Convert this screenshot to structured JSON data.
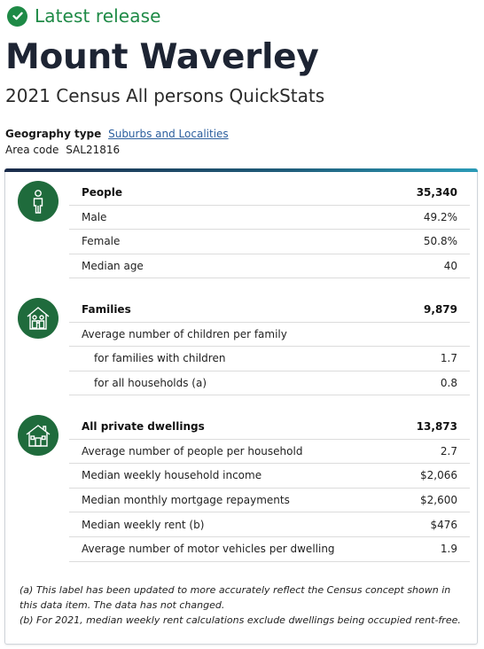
{
  "release": {
    "label": "Latest release",
    "icon": "check-circle-icon",
    "color": "#1e8a46"
  },
  "page": {
    "title": "Mount Waverley",
    "subtitle": "2021 Census All persons QuickStats"
  },
  "geography": {
    "type_label": "Geography type",
    "type_value": "Suburbs and Localities",
    "code_label": "Area code",
    "code_value": "SAL21816"
  },
  "sections": {
    "people": {
      "icon": "person-icon",
      "rows": [
        {
          "label": "People",
          "value": "35,340"
        },
        {
          "label": "Male",
          "value": "49.2%"
        },
        {
          "label": "Female",
          "value": "50.8%"
        },
        {
          "label": "Median age",
          "value": "40"
        }
      ]
    },
    "families": {
      "icon": "family-house-icon",
      "rows": [
        {
          "label": "Families",
          "value": "9,879"
        },
        {
          "label": "Average number of children per family",
          "value": ""
        },
        {
          "label": "for families with children",
          "value": "1.7"
        },
        {
          "label": "for all households (a)",
          "value": "0.8"
        }
      ]
    },
    "dwellings": {
      "icon": "house-icon",
      "rows": [
        {
          "label": "All private dwellings",
          "value": "13,873"
        },
        {
          "label": "Average number of people per household",
          "value": "2.7"
        },
        {
          "label": "Median weekly household income",
          "value": "$2,066"
        },
        {
          "label": "Median monthly mortgage repayments",
          "value": "$2,600"
        },
        {
          "label": "Median weekly rent (b)",
          "value": "$476"
        },
        {
          "label": "Average number of motor vehicles per dwelling",
          "value": "1.9"
        }
      ]
    }
  },
  "notes": {
    "a": "(a) This label has been updated to more accurately reflect the Census concept shown in this data item. The data has not changed.",
    "b": "(b) For 2021, median weekly rent calculations exclude dwellings being occupied rent-free."
  },
  "colors": {
    "icon_bg": "#1f6b3c",
    "link": "#2c5f9e"
  }
}
